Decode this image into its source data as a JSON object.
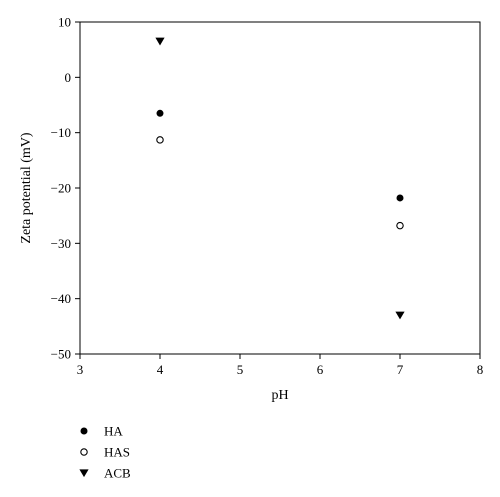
{
  "chart_data": {
    "type": "scatter",
    "xlabel": "pH",
    "ylabel": "Zeta potential (mV)",
    "xlim": [
      3,
      8
    ],
    "ylim": [
      -50,
      10
    ],
    "xticks": [
      3,
      4,
      5,
      6,
      7,
      8
    ],
    "yticks": [
      10,
      0,
      -10,
      -20,
      -30,
      -40,
      -50
    ],
    "xtick_labels": [
      "3",
      "4",
      "5",
      "6",
      "7",
      "8"
    ],
    "ytick_labels": [
      "10",
      "0",
      "−10",
      "−20",
      "−30",
      "−40",
      "−50"
    ],
    "grid": false,
    "legend_position": "bottom-left, below plot",
    "series": [
      {
        "name": "HA",
        "marker": "filled-circle",
        "color": "#000000",
        "points": [
          [
            4,
            -6.5
          ],
          [
            7,
            -21.8
          ]
        ]
      },
      {
        "name": "HAS",
        "marker": "open-circle",
        "color": "#000000",
        "points": [
          [
            4,
            -11.3
          ],
          [
            7,
            -26.8
          ]
        ]
      },
      {
        "name": "ACB",
        "marker": "filled-triangle-down",
        "color": "#000000",
        "points": [
          [
            4,
            6.5
          ],
          [
            7,
            -43.0
          ]
        ]
      }
    ]
  }
}
